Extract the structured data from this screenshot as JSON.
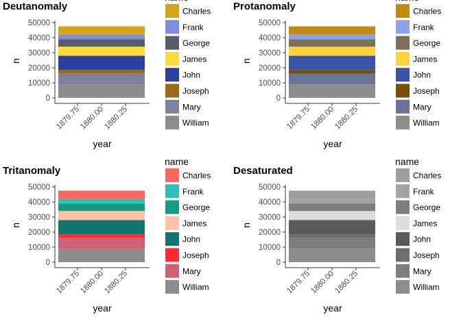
{
  "chart_data": [
    {
      "type": "bar",
      "title": "Deutanomaly",
      "xlabel": "year",
      "ylabel": "n",
      "x": [
        1880
      ],
      "x_ticks": [
        "1879.75",
        "1880.00",
        "1880.25"
      ],
      "y_ticks": [
        "0",
        "10000",
        "20000",
        "30000",
        "40000",
        "50000"
      ],
      "ylim": [
        0,
        50000
      ],
      "stacked": true,
      "legend_title": "name",
      "legend_position": "right",
      "grid": false,
      "series": [
        {
          "name": "Charles",
          "values": [
            5500
          ],
          "color": "#D4A41A"
        },
        {
          "name": "Frank",
          "values": [
            3000
          ],
          "color": "#7B8EE0"
        },
        {
          "name": "George",
          "values": [
            5000
          ],
          "color": "#5A5D67"
        },
        {
          "name": "James",
          "values": [
            6000
          ],
          "color": "#FDDB3A"
        },
        {
          "name": "John",
          "values": [
            9500
          ],
          "color": "#2C3F9E"
        },
        {
          "name": "Joseph",
          "values": [
            2500
          ],
          "color": "#9A6B13"
        },
        {
          "name": "Mary",
          "values": [
            7000
          ],
          "color": "#7D8199"
        },
        {
          "name": "William",
          "values": [
            9000
          ],
          "color": "#8C8C8C"
        }
      ]
    },
    {
      "type": "bar",
      "title": "Protanomaly",
      "xlabel": "year",
      "ylabel": "n",
      "x": [
        1880
      ],
      "x_ticks": [
        "1879.75",
        "1880.00",
        "1880.25"
      ],
      "y_ticks": [
        "0",
        "10000",
        "20000",
        "30000",
        "40000",
        "50000"
      ],
      "ylim": [
        0,
        50000
      ],
      "stacked": true,
      "legend_title": "name",
      "legend_position": "right",
      "grid": false,
      "series": [
        {
          "name": "Charles",
          "values": [
            5500
          ],
          "color": "#C28A10"
        },
        {
          "name": "Frank",
          "values": [
            3000
          ],
          "color": "#8EA2EA"
        },
        {
          "name": "George",
          "values": [
            5000
          ],
          "color": "#7A7158"
        },
        {
          "name": "James",
          "values": [
            6000
          ],
          "color": "#FFD23A"
        },
        {
          "name": "John",
          "values": [
            9500
          ],
          "color": "#3A55A8"
        },
        {
          "name": "Joseph",
          "values": [
            2500
          ],
          "color": "#765006"
        },
        {
          "name": "Mary",
          "values": [
            7000
          ],
          "color": "#6A7498"
        },
        {
          "name": "William",
          "values": [
            9000
          ],
          "color": "#8C8C8C"
        }
      ]
    },
    {
      "type": "bar",
      "title": "Tritanomaly",
      "xlabel": "year",
      "ylabel": "n",
      "x": [
        1880
      ],
      "x_ticks": [
        "1879.75",
        "1880.00",
        "1880.25"
      ],
      "y_ticks": [
        "0",
        "10000",
        "20000",
        "30000",
        "40000",
        "50000"
      ],
      "ylim": [
        0,
        50000
      ],
      "stacked": true,
      "legend_title": "name",
      "legend_position": "right",
      "grid": false,
      "series": [
        {
          "name": "Charles",
          "values": [
            5500
          ],
          "color": "#FF675E"
        },
        {
          "name": "Frank",
          "values": [
            3000
          ],
          "color": "#2EC0B6"
        },
        {
          "name": "George",
          "values": [
            5000
          ],
          "color": "#159A83"
        },
        {
          "name": "James",
          "values": [
            6000
          ],
          "color": "#FFC0A6"
        },
        {
          "name": "John",
          "values": [
            9500
          ],
          "color": "#117470"
        },
        {
          "name": "Joseph",
          "values": [
            2500
          ],
          "color": "#FF2A32"
        },
        {
          "name": "Mary",
          "values": [
            7000
          ],
          "color": "#CF6173"
        },
        {
          "name": "William",
          "values": [
            9000
          ],
          "color": "#8C8C8C"
        }
      ]
    },
    {
      "type": "bar",
      "title": "Desaturated",
      "xlabel": "year",
      "ylabel": "n",
      "x": [
        1880
      ],
      "x_ticks": [
        "1879.75",
        "1880.00",
        "1880.25"
      ],
      "y_ticks": [
        "0",
        "10000",
        "20000",
        "30000",
        "40000",
        "50000"
      ],
      "ylim": [
        0,
        50000
      ],
      "stacked": true,
      "legend_title": "name",
      "legend_position": "right",
      "grid": false,
      "series": [
        {
          "name": "Charles",
          "values": [
            5500
          ],
          "color": "#9E9E9E"
        },
        {
          "name": "Frank",
          "values": [
            3000
          ],
          "color": "#A3A3A3"
        },
        {
          "name": "George",
          "values": [
            5000
          ],
          "color": "#7E7E7E"
        },
        {
          "name": "James",
          "values": [
            6000
          ],
          "color": "#DCDCDC"
        },
        {
          "name": "John",
          "values": [
            9500
          ],
          "color": "#5A5A5A"
        },
        {
          "name": "Joseph",
          "values": [
            2500
          ],
          "color": "#6E6E6E"
        },
        {
          "name": "Mary",
          "values": [
            7000
          ],
          "color": "#7E7E7E"
        },
        {
          "name": "William",
          "values": [
            9000
          ],
          "color": "#8C8C8C"
        }
      ]
    }
  ]
}
